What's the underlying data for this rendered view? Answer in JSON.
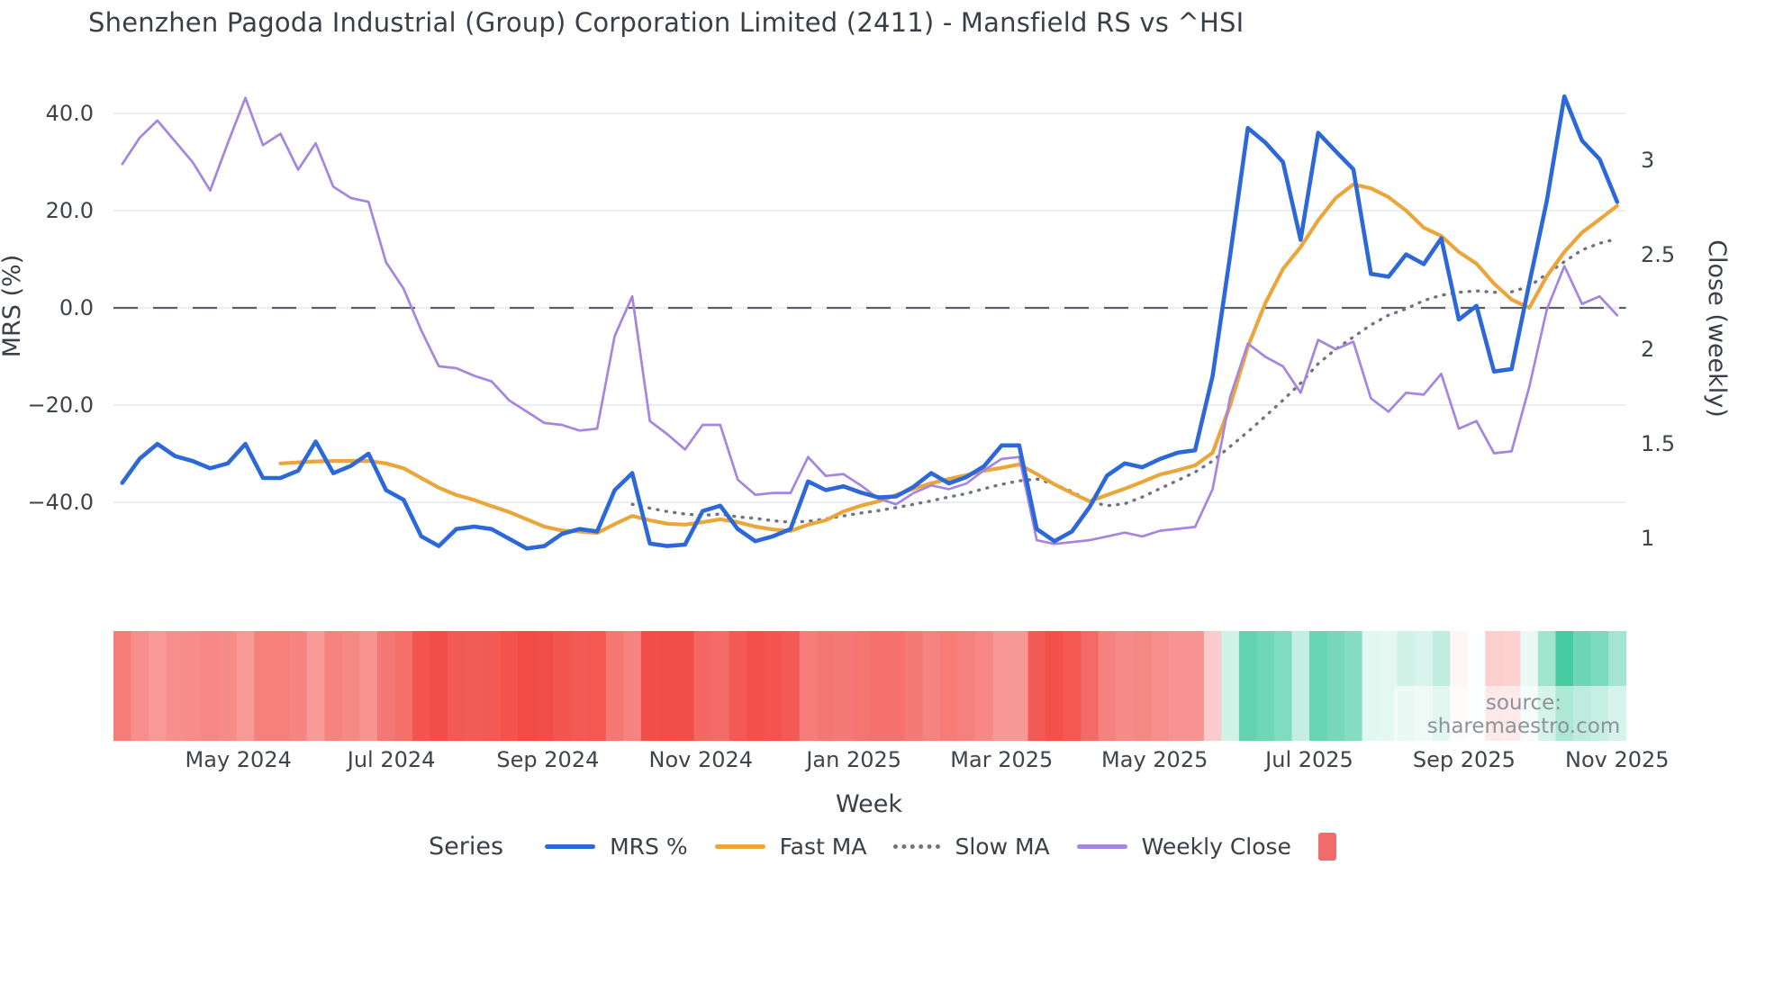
{
  "title": "Shenzhen Pagoda Industrial (Group) Corporation Limited (2411) - Mansfield RS vs ^HSI",
  "source": "source: sharemaestro.com",
  "series_label": "Series",
  "xlabel": "Week",
  "colors": {
    "mrs": "#2c68d8",
    "fast_ma": "#eba63b",
    "slow_ma": "#70747e",
    "weekly_close": "#a685de",
    "heat_red_base": "rgb(242,73,68)",
    "heat_green_base": "rgb(43,196,147)",
    "legend_heat_swatch": "#f06c6c",
    "zero_dash": "#5a5e6b",
    "grid": "#eaedf5",
    "tick_text": "#3f444c"
  },
  "legend": {
    "items": [
      {
        "label": "MRS %",
        "style": "line",
        "color": "#2c68d8"
      },
      {
        "label": "Fast MA",
        "style": "line",
        "color": "#eba63b"
      },
      {
        "label": "Slow MA",
        "style": "dotted",
        "color": "#70747e"
      },
      {
        "label": "Weekly Close",
        "style": "line",
        "color": "#a685de"
      },
      {
        "label": "",
        "style": "rect",
        "color": "#f06c6c"
      }
    ]
  },
  "chart_data": {
    "type": "line",
    "title": "Shenzhen Pagoda Industrial (Group) Corporation Limited (2411) - Mansfield RS vs ^HSI",
    "xlabel": "Week",
    "left_axis": {
      "label": "MRS (%)",
      "ticks": [
        40.0,
        20.0,
        0.0,
        -20.0,
        -40.0
      ],
      "tick_labels": [
        "40.0",
        "20.0",
        "0.0",
        "−20.0",
        "−40.0"
      ]
    },
    "right_axis": {
      "label": "Close (weekly)",
      "ticks": [
        3,
        2.5,
        2,
        1.5,
        1
      ],
      "tick_labels": [
        "3",
        "2.5",
        "2",
        "1.5",
        "1"
      ]
    },
    "x_ticks": [
      {
        "label": "May 2024",
        "week": 6.6
      },
      {
        "label": "Jul 2024",
        "week": 15.3
      },
      {
        "label": "Sep 2024",
        "week": 24.2
      },
      {
        "label": "Nov 2024",
        "week": 32.9
      },
      {
        "label": "Jan 2025",
        "week": 41.6
      },
      {
        "label": "Mar 2025",
        "week": 50.0
      },
      {
        "label": "May 2025",
        "week": 58.7
      },
      {
        "label": "Jul 2025",
        "week": 67.5
      },
      {
        "label": "Sep 2025",
        "week": 76.3
      },
      {
        "label": "Nov 2025",
        "week": 85.0
      }
    ],
    "zero_line": 0,
    "grid": true,
    "legend_position": "bottom",
    "series": [
      {
        "name": "MRS %",
        "axis": "left",
        "style": "solid",
        "color": "#2c68d8",
        "values": [
          -36,
          -31,
          -28,
          -30.5,
          -31.5,
          -33,
          -32,
          -28,
          -35,
          -35,
          -33.5,
          -27.5,
          -34,
          -32.5,
          -30,
          -37.5,
          -39.5,
          -47,
          -49,
          -45.5,
          -45,
          -45.5,
          -47.5,
          -49.5,
          -49,
          -46.5,
          -45.5,
          -46,
          -37.5,
          -34,
          -48.5,
          -49,
          -48.7,
          -41.8,
          -40.7,
          -45.5,
          -48,
          -47,
          -45.5,
          -35.7,
          -37.5,
          -36.7,
          -38,
          -39,
          -38.8,
          -36.8,
          -34,
          -36.1,
          -34.8,
          -32.6,
          -28.3,
          -28.3,
          -45.5,
          -48,
          -46,
          -41,
          -34.5,
          -32,
          -32.8,
          -31.1,
          -29.8,
          -29.3,
          -14,
          11,
          37,
          34,
          30,
          14,
          36,
          32.2,
          28.5,
          7,
          6.4,
          11,
          9,
          14.3,
          -2.4,
          0.4,
          -13.1,
          -12.6,
          5,
          22,
          43.5,
          34.4,
          30.6,
          21.8
        ]
      },
      {
        "name": "Fast MA",
        "axis": "left",
        "style": "solid",
        "color": "#eba63b",
        "values": [
          null,
          null,
          null,
          null,
          null,
          null,
          null,
          null,
          null,
          -32,
          -31.8,
          -31.6,
          -31.5,
          -31.5,
          -31.5,
          -32,
          -33,
          -35,
          -37,
          -38.5,
          -39.5,
          -40.8,
          -42,
          -43.5,
          -45,
          -45.8,
          -46,
          -46.3,
          -44.5,
          -42.8,
          -43.7,
          -44.4,
          -44.6,
          -44.1,
          -43.5,
          -44.1,
          -45,
          -45.6,
          -45.9,
          -44.6,
          -43.7,
          -41.9,
          -40.7,
          -39.8,
          -38.5,
          -37.2,
          -36.1,
          -35.2,
          -34.4,
          -33.5,
          -32.9,
          -32.2,
          -34.2,
          -36.3,
          -38.1,
          -39.8,
          -38.5,
          -37.2,
          -35.8,
          -34.3,
          -33.4,
          -32.4,
          -29.8,
          -20,
          -8,
          1,
          8,
          12.5,
          18,
          22.6,
          25.4,
          24.6,
          22.8,
          20,
          16.5,
          14.8,
          11.5,
          9.1,
          5,
          1.7,
          0,
          6.5,
          11.5,
          15.5,
          18.2,
          21
        ]
      },
      {
        "name": "Slow MA",
        "axis": "left",
        "style": "dotted",
        "color": "#70747e",
        "values": [
          null,
          null,
          null,
          null,
          null,
          null,
          null,
          null,
          null,
          null,
          null,
          null,
          null,
          null,
          null,
          null,
          null,
          null,
          null,
          null,
          null,
          null,
          null,
          null,
          null,
          null,
          null,
          null,
          null,
          -40.4,
          -41.2,
          -41.9,
          -42.4,
          -42.7,
          -42.4,
          -43,
          -43.3,
          -43.8,
          -44.1,
          -43.9,
          -43.4,
          -42.8,
          -42.2,
          -41.7,
          -41.1,
          -40.4,
          -39.7,
          -38.9,
          -38.2,
          -37.2,
          -36.3,
          -35.6,
          -35.2,
          -36.3,
          -37.8,
          -39.8,
          -40.7,
          -40.3,
          -38.9,
          -37.2,
          -35.5,
          -33.8,
          -31.5,
          -28.5,
          -25.5,
          -22.3,
          -19,
          -15.5,
          -11.5,
          -8.5,
          -6,
          -3.5,
          -1.5,
          -0.2,
          1.5,
          2.6,
          3.2,
          3.5,
          3.2,
          3.3,
          4.4,
          7,
          9.5,
          11.9,
          13.3,
          14.2
        ]
      },
      {
        "name": "Weekly Close",
        "axis": "right",
        "style": "solid",
        "color": "#a685de",
        "values": [
          2.98,
          3.12,
          3.21,
          3.1,
          2.99,
          2.84,
          3.09,
          3.33,
          3.08,
          3.14,
          2.95,
          3.09,
          2.86,
          2.8,
          2.78,
          2.46,
          2.32,
          2.1,
          1.91,
          1.9,
          1.86,
          1.83,
          1.73,
          1.67,
          1.61,
          1.6,
          1.57,
          1.58,
          2.07,
          2.28,
          1.62,
          1.55,
          1.47,
          1.6,
          1.6,
          1.31,
          1.23,
          1.24,
          1.24,
          1.43,
          1.33,
          1.34,
          1.28,
          1.21,
          1.18,
          1.24,
          1.28,
          1.26,
          1.29,
          1.36,
          1.42,
          1.43,
          0.99,
          0.97,
          0.98,
          0.99,
          1.01,
          1.03,
          1.01,
          1.04,
          1.05,
          1.06,
          1.26,
          1.75,
          2.03,
          1.96,
          1.91,
          1.77,
          2.05,
          2.0,
          2.04,
          1.74,
          1.67,
          1.77,
          1.76,
          1.87,
          1.58,
          1.62,
          1.45,
          1.46,
          1.8,
          2.21,
          2.44,
          2.24,
          2.28,
          2.18
        ]
      }
    ],
    "heatmap": {
      "source_series": "MRS %",
      "negative_color": "red",
      "positive_color": "green",
      "saturation_at_abs": 50
    }
  }
}
